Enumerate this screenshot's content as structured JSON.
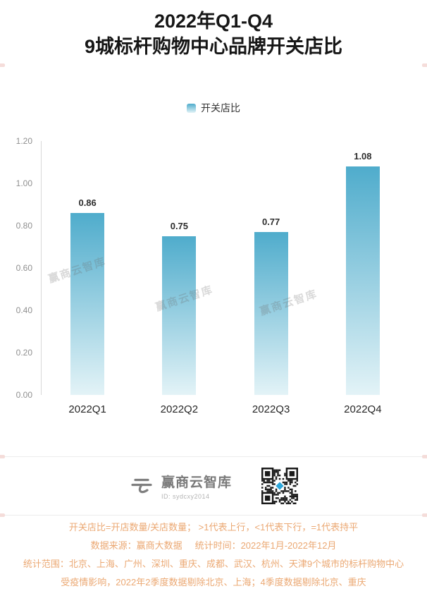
{
  "title": {
    "line1": "2022年Q1-Q4",
    "line2": "9城标杆购物中心品牌开关店比"
  },
  "legend": {
    "label": "开关店比"
  },
  "chart_data": {
    "type": "bar",
    "title": "2022年Q1-Q4 9城标杆购物中心品牌开关店比",
    "categories": [
      "2022Q1",
      "2022Q2",
      "2022Q3",
      "2022Q4"
    ],
    "values": [
      0.86,
      0.75,
      0.77,
      1.08
    ],
    "labels": [
      "0.86",
      "0.75",
      "0.77",
      "1.08"
    ],
    "ylim": [
      0,
      1.2
    ],
    "yticks": [
      "1.20",
      "1.00",
      "0.80",
      "0.60",
      "0.40",
      "0.20",
      "0.00"
    ],
    "legend": [
      "开关店比"
    ],
    "legend_position": "top",
    "grid": false,
    "xlabel": "",
    "ylabel": "",
    "bar_color_top": "#4FACCC",
    "bar_color_bottom": "#E3F3F7"
  },
  "watermark": {
    "text": "赢商云智库"
  },
  "footer": {
    "brand": "赢商云智库",
    "brand_id": "ID: sydcxy2014"
  },
  "notes": {
    "line1": "开关店比=开店数量/关店数量； >1代表上行，<1代表下行，=1代表持平",
    "line2a": "数据来源：赢商大数据",
    "line2b": "统计时间：2022年1月-2022年12月",
    "line3": "统计范围：北京、上海、广州、深圳、重庆、成都、武汉、杭州、天津9个城市的标杆购物中心",
    "line4": "受疫情影响，2022年2季度数据剔除北京、上海；4季度数据剔除北京、重庆"
  },
  "colors": {
    "accent_orange": "#EBA873",
    "qr_center_diamond": "#2EA7DB"
  }
}
